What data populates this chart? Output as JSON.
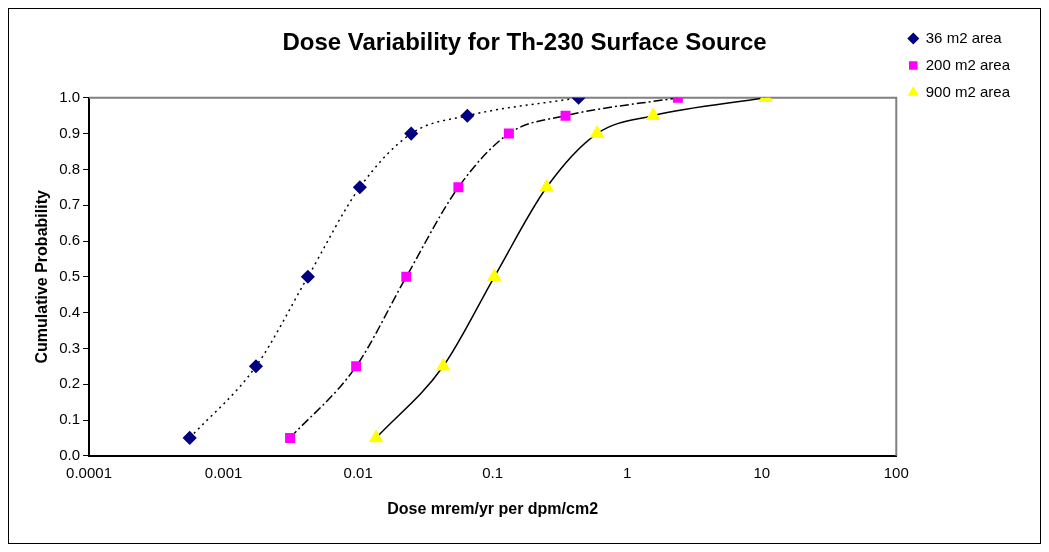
{
  "chart_data": {
    "type": "line",
    "title": "Dose Variability for Th-230 Surface Source",
    "xlabel": "Dose mrem/yr per dpm/cm2",
    "ylabel": "Cumulative Probability",
    "log": "x",
    "xlim": [
      0.0001,
      100
    ],
    "xticks": [
      0.0001,
      0.001,
      0.01,
      0.1,
      1,
      10,
      100
    ],
    "ylim": [
      0,
      1
    ],
    "yticks": [
      {
        "value": 0,
        "label": "0.0"
      },
      0.1,
      0.2,
      0.3,
      0.4,
      0.5,
      0.6,
      0.7,
      0.8,
      0.9,
      {
        "value": 1,
        "label": "1.0"
      }
    ],
    "grid": false,
    "legend": "right",
    "series": [
      {
        "name": "36 m2 area",
        "color": "#000080",
        "marker": "diamond",
        "line_style": "dotted",
        "x": [
          0.00056,
          0.00174,
          0.00423,
          0.0103,
          0.0248,
          0.0648,
          0.435
        ],
        "values": [
          0.05,
          0.25,
          0.5,
          0.75,
          0.9,
          0.95,
          1.0
        ]
      },
      {
        "name": "200 m2 area",
        "color": "#ff00ff",
        "marker": "square",
        "line_style": "dashed",
        "x": [
          0.00312,
          0.00967,
          0.0228,
          0.0556,
          0.132,
          0.348,
          2.38
        ],
        "values": [
          0.05,
          0.25,
          0.5,
          0.75,
          0.9,
          0.95,
          1.0
        ]
      },
      {
        "name": "900 m2 area",
        "color": "#ffff00",
        "marker": "triangle",
        "line_style": "solid",
        "x": [
          0.0136,
          0.0429,
          0.103,
          0.252,
          0.597,
          1.56,
          10.7
        ],
        "values": [
          0.05,
          0.25,
          0.5,
          0.75,
          0.9,
          0.95,
          1.0
        ]
      }
    ]
  }
}
